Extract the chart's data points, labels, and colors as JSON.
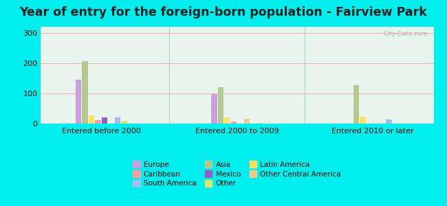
{
  "title": "Year of entry for the foreign-born population - Fairview Park",
  "categories": [
    "Entered before 2000",
    "Entered 2000 to 2009",
    "Entered 2010 or later"
  ],
  "series_order": [
    "Europe",
    "Asia",
    "Latin America",
    "Caribbean",
    "Mexico",
    "Other Central America",
    "South America",
    "Other"
  ],
  "series": {
    "Europe": [
      145,
      97,
      0
    ],
    "Asia": [
      207,
      120,
      127
    ],
    "Latin America": [
      28,
      20,
      22
    ],
    "Caribbean": [
      12,
      7,
      0
    ],
    "Mexico": [
      20,
      0,
      0
    ],
    "Other Central America": [
      0,
      17,
      0
    ],
    "South America": [
      20,
      0,
      14
    ],
    "Other": [
      10,
      3,
      0
    ]
  },
  "colors": {
    "Europe": "#c9a0dc",
    "Asia": "#b5c98e",
    "Latin America": "#ffe066",
    "Caribbean": "#f4a0a0",
    "Mexico": "#9060c0",
    "Other Central America": "#f4c890",
    "South America": "#a0c0f0",
    "Other": "#d8e870"
  },
  "legend_order": [
    "Europe",
    "Caribbean",
    "South America",
    "Asia",
    "Mexico",
    "Other",
    "Latin America",
    "Other Central America"
  ],
  "ylim": [
    0,
    320
  ],
  "yticks": [
    0,
    100,
    200,
    300
  ],
  "background_color": "#00eeee",
  "plot_bg": "#e8f5ee",
  "watermark": "City-Data.com",
  "title_fontsize": 12.5,
  "grid_color": "#ffaaaa",
  "separator_color": "#88ccaa"
}
